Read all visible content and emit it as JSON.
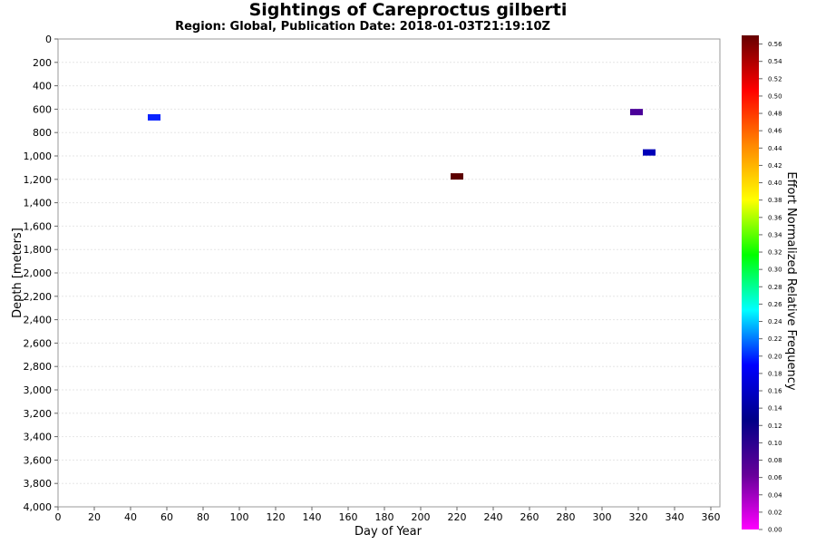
{
  "chart_data": {
    "type": "heatmap",
    "title": "Sightings of Careproctus gilberti",
    "subtitle": "Region: Global, Publication Date: 2018-01-03T21:19:10Z",
    "xlabel": "Day of Year",
    "ylabel": "Depth [meters]",
    "xlim": [
      0,
      365
    ],
    "ylim": [
      0,
      4000
    ],
    "y_inverted": true,
    "x_ticks": [
      "0",
      "20",
      "40",
      "60",
      "80",
      "100",
      "120",
      "140",
      "160",
      "180",
      "200",
      "220",
      "240",
      "260",
      "280",
      "300",
      "320",
      "340",
      "360"
    ],
    "y_ticks": [
      "0",
      "200",
      "400",
      "600",
      "800",
      "1,000",
      "1,200",
      "1,400",
      "1,600",
      "1,800",
      "2,000",
      "2,200",
      "2,400",
      "2,600",
      "2,800",
      "3,000",
      "3,200",
      "3,400",
      "3,600",
      "3,800",
      "4,000"
    ],
    "colorbar": {
      "label": "Effort Normalized Relative Frequency",
      "range": [
        0.0,
        0.57
      ],
      "ticks": [
        "0.00",
        "0.02",
        "0.04",
        "0.06",
        "0.08",
        "0.10",
        "0.12",
        "0.14",
        "0.16",
        "0.18",
        "0.20",
        "0.22",
        "0.24",
        "0.26",
        "0.28",
        "0.30",
        "0.32",
        "0.34",
        "0.36",
        "0.38",
        "0.40",
        "0.42",
        "0.44",
        "0.46",
        "0.48",
        "0.50",
        "0.52",
        "0.54",
        "0.56"
      ],
      "colormap": [
        "#ff00ff",
        "#660099",
        "#000088",
        "#0000ff",
        "#00ffff",
        "#00ff00",
        "#ffff00",
        "#ff8800",
        "#ff0000",
        "#660000"
      ]
    },
    "points": [
      {
        "day": 53,
        "depth": 670,
        "value": 0.19,
        "color": "#0a23ff"
      },
      {
        "day": 220,
        "depth": 1175,
        "value": 0.57,
        "color": "#5c0000"
      },
      {
        "day": 319,
        "depth": 625,
        "value": 0.09,
        "color": "#4a0099"
      },
      {
        "day": 326,
        "depth": 970,
        "value": 0.13,
        "color": "#0000b8"
      }
    ]
  }
}
